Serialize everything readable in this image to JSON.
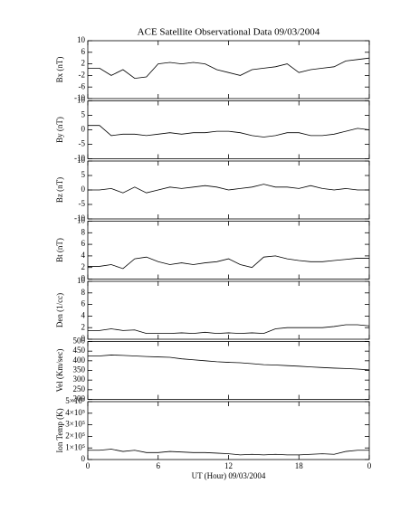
{
  "chart_data": [
    {
      "type": "line",
      "title": "ACE Satellite Observational Data   09/03/2004",
      "ylabel": "Bx (nT)",
      "xlim": [
        0,
        24
      ],
      "xticks": [
        0,
        6,
        12,
        18,
        {
          "value": 24,
          "label": "0"
        }
      ],
      "ylim": [
        -10,
        10
      ],
      "yticks": [
        -10,
        -6,
        -2,
        2,
        6,
        10
      ],
      "color": "#000000",
      "x": [
        0,
        1,
        2,
        3,
        4,
        5,
        6,
        7,
        8,
        9,
        10,
        11,
        12,
        13,
        14,
        15,
        16,
        17,
        18,
        19,
        20,
        21,
        22,
        23,
        24
      ],
      "values": [
        0.5,
        0.5,
        -2,
        0,
        -3,
        -2.5,
        2,
        2.5,
        2,
        2.5,
        2,
        0,
        -1,
        -2,
        0,
        0.5,
        1,
        2,
        -1,
        0,
        0.5,
        1,
        3,
        3.5,
        4
      ]
    },
    {
      "type": "line",
      "ylabel": "By (nT)",
      "xlim": [
        0,
        24
      ],
      "xticks": [
        0,
        6,
        12,
        18,
        {
          "value": 24,
          "label": "0"
        }
      ],
      "ylim": [
        -10,
        10
      ],
      "yticks": [
        -10,
        -5,
        0,
        5,
        10
      ],
      "color": "#000000",
      "x": [
        0,
        1,
        2,
        3,
        4,
        5,
        6,
        7,
        8,
        9,
        10,
        11,
        12,
        13,
        14,
        15,
        16,
        17,
        18,
        19,
        20,
        21,
        22,
        23,
        24
      ],
      "values": [
        1.5,
        1.5,
        -2,
        -1.5,
        -1.5,
        -2,
        -1.5,
        -1,
        -1.5,
        -1,
        -1,
        -0.5,
        -0.5,
        -1,
        -2,
        -2.5,
        -2,
        -1,
        -1,
        -2,
        -2,
        -1.5,
        -0.5,
        0.5,
        0
      ]
    },
    {
      "type": "line",
      "ylabel": "Bz (nT)",
      "xlim": [
        0,
        24
      ],
      "xticks": [
        0,
        6,
        12,
        18,
        {
          "value": 24,
          "label": "0"
        }
      ],
      "ylim": [
        -10,
        10
      ],
      "yticks": [
        -10,
        -5,
        0,
        5,
        10
      ],
      "color": "#000000",
      "x": [
        0,
        1,
        2,
        3,
        4,
        5,
        6,
        7,
        8,
        9,
        10,
        11,
        12,
        13,
        14,
        15,
        16,
        17,
        18,
        19,
        20,
        21,
        22,
        23,
        24
      ],
      "values": [
        0,
        0,
        0.5,
        -1,
        1,
        -1,
        0,
        1,
        0.5,
        1,
        1.5,
        1,
        0,
        0.5,
        1,
        2,
        1,
        1,
        0.5,
        1.5,
        0.5,
        0,
        0.5,
        0,
        0
      ]
    },
    {
      "type": "line",
      "ylabel": "Bt (nT)",
      "xlim": [
        0,
        24
      ],
      "xticks": [
        0,
        6,
        12,
        18,
        {
          "value": 24,
          "label": "0"
        }
      ],
      "ylim": [
        0,
        10
      ],
      "yticks": [
        0,
        2,
        4,
        6,
        8,
        10
      ],
      "color": "#000000",
      "x": [
        0,
        1,
        2,
        3,
        4,
        5,
        6,
        7,
        8,
        9,
        10,
        11,
        12,
        13,
        14,
        15,
        16,
        17,
        18,
        19,
        20,
        21,
        22,
        23,
        24
      ],
      "values": [
        2.2,
        2.2,
        2.5,
        1.8,
        3.5,
        3.8,
        3,
        2.5,
        2.8,
        2.5,
        2.8,
        3,
        3.5,
        2.5,
        2,
        3.8,
        4,
        3.5,
        3.2,
        3,
        3,
        3.2,
        3.4,
        3.6,
        3.6
      ]
    },
    {
      "type": "line",
      "ylabel": "Den (1/cc)",
      "xlim": [
        0,
        24
      ],
      "xticks": [
        0,
        6,
        12,
        18,
        {
          "value": 24,
          "label": "0"
        }
      ],
      "ylim": [
        0,
        10
      ],
      "yticks": [
        0,
        2,
        4,
        6,
        8,
        10
      ],
      "color": "#000000",
      "x": [
        0,
        1,
        2,
        3,
        4,
        5,
        6,
        7,
        8,
        9,
        10,
        11,
        12,
        13,
        14,
        15,
        16,
        17,
        18,
        19,
        20,
        21,
        22,
        23,
        24
      ],
      "values": [
        1.5,
        1.5,
        1.8,
        1.5,
        1.6,
        1,
        1,
        1,
        1.1,
        1,
        1.2,
        1,
        1.1,
        1,
        1.1,
        1,
        1.8,
        2,
        2,
        2,
        2,
        2.2,
        2.5,
        2.5,
        2.3
      ]
    },
    {
      "type": "line",
      "ylabel": "Vel (Km/sec)",
      "xlim": [
        0,
        24
      ],
      "xticks": [
        0,
        6,
        12,
        18,
        {
          "value": 24,
          "label": "0"
        }
      ],
      "ylim": [
        200,
        500
      ],
      "yticks": [
        200,
        250,
        300,
        350,
        400,
        450,
        500
      ],
      "color": "#000000",
      "x": [
        0,
        1,
        2,
        3,
        4,
        5,
        6,
        7,
        8,
        9,
        10,
        11,
        12,
        13,
        14,
        15,
        16,
        17,
        18,
        19,
        20,
        21,
        22,
        23,
        24
      ],
      "values": [
        425,
        425,
        430,
        428,
        425,
        422,
        420,
        418,
        410,
        405,
        400,
        395,
        392,
        390,
        385,
        380,
        378,
        375,
        372,
        368,
        365,
        362,
        360,
        357,
        353
      ]
    },
    {
      "type": "line",
      "ylabel": "Ion Temp (K)",
      "xlabel": "UT (Hour)   09/03/2004",
      "xlim": [
        0,
        24
      ],
      "xticks": [
        0,
        6,
        12,
        18,
        {
          "value": 24,
          "label": "0"
        }
      ],
      "ylim": [
        0,
        500000
      ],
      "yticks": [
        0,
        {
          "value": 100000,
          "label": "1×10⁵"
        },
        {
          "value": 200000,
          "label": "2×10⁵"
        },
        {
          "value": 300000,
          "label": "3×10⁵"
        },
        {
          "value": 400000,
          "label": "4×10⁵"
        },
        {
          "value": 500000,
          "label": "5×10⁵"
        }
      ],
      "color": "#000000",
      "x": [
        0,
        1,
        2,
        3,
        4,
        5,
        6,
        7,
        8,
        9,
        10,
        11,
        12,
        13,
        14,
        15,
        16,
        17,
        18,
        19,
        20,
        21,
        22,
        23,
        24
      ],
      "values": [
        80000,
        80000,
        90000,
        70000,
        80000,
        60000,
        60000,
        70000,
        65000,
        60000,
        60000,
        55000,
        50000,
        40000,
        45000,
        40000,
        45000,
        40000,
        40000,
        45000,
        50000,
        45000,
        70000,
        80000,
        80000
      ]
    }
  ]
}
